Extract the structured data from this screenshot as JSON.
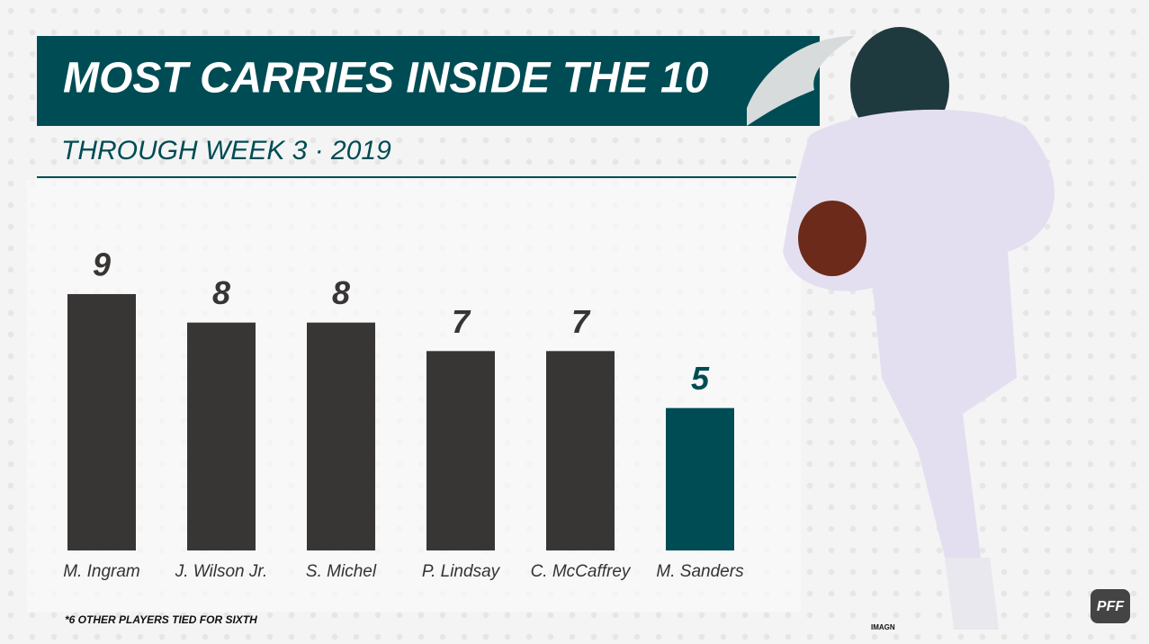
{
  "chart_data": {
    "type": "bar",
    "title": "MOST CARRIES INSIDE THE 10",
    "subtitle": "THROUGH WEEK 3 · 2019",
    "categories": [
      "M. Ingram",
      "J. Wilson Jr.",
      "S. Michel",
      "P. Lindsay",
      "C. McCaffrey",
      "M. Sanders"
    ],
    "values": [
      9,
      8,
      8,
      7,
      7,
      5
    ],
    "colors": [
      "#383635",
      "#383635",
      "#383635",
      "#383635",
      "#383635",
      "#004c54"
    ],
    "footnote": "*6 OTHER PLAYERS TIED FOR SIXTH",
    "photo_credit": "IMAGN",
    "logo": "PFF"
  }
}
